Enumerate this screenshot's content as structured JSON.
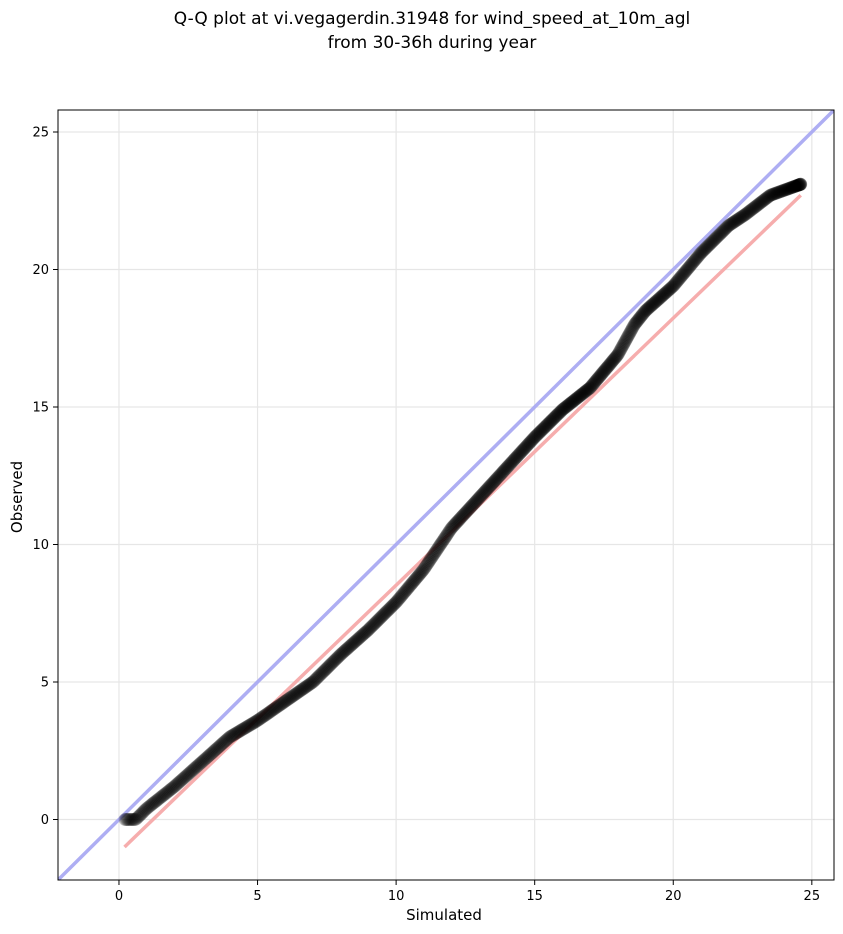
{
  "chart_data": {
    "type": "scatter",
    "title": "Q-Q plot at vi.vegagerdin.31948 for wind_speed_at_10m_agl",
    "subtitle": "from 30-36h during year",
    "xlabel": "Simulated",
    "ylabel": "Observed",
    "xlim": [
      -2.2,
      25.8
    ],
    "ylim": [
      -2.2,
      25.8
    ],
    "xticks": [
      0,
      5,
      10,
      15,
      20,
      25
    ],
    "yticks": [
      0,
      5,
      10,
      15,
      20,
      25
    ],
    "grid": true,
    "colors": {
      "points": "#000000",
      "identity_line": "#aaaaf2",
      "fit_line": "#f5a9a9"
    },
    "identity_line": {
      "x": [
        -2.2,
        25.8
      ],
      "y": [
        -2.2,
        25.8
      ]
    },
    "fit_line": {
      "x": [
        0.2,
        24.6
      ],
      "y": [
        -1.0,
        22.7
      ]
    },
    "quantile_curve": {
      "x": [
        0.2,
        0.6,
        1.0,
        2.0,
        3.0,
        4.0,
        5.0,
        6.0,
        7.0,
        8.0,
        9.0,
        10.0,
        11.0,
        12.0,
        13.0,
        14.0,
        15.0,
        16.0,
        17.0,
        18.0,
        18.6,
        19.0,
        20.0,
        21.0,
        22.0,
        22.6,
        23.5,
        24.6
      ],
      "y": [
        0.0,
        0.0,
        0.4,
        1.2,
        2.1,
        3.0,
        3.6,
        4.3,
        5.0,
        6.0,
        6.9,
        7.9,
        9.1,
        10.6,
        11.7,
        12.8,
        13.9,
        14.9,
        15.7,
        16.9,
        18.0,
        18.5,
        19.4,
        20.6,
        21.6,
        22.0,
        22.7,
        23.1
      ]
    },
    "point_count": 900
  }
}
